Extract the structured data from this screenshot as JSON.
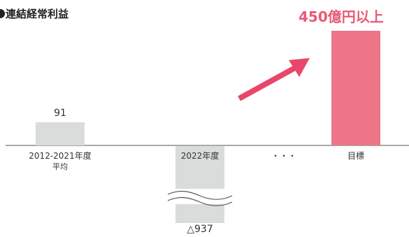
{
  "header": {
    "title": "連結経常利益"
  },
  "chart_data": {
    "type": "bar",
    "title": "連結経常利益",
    "categories": [
      {
        "label": "2012-2021年度",
        "sublabel": "平均"
      },
      {
        "label": "2022年度",
        "sublabel": ""
      },
      {
        "label": "・・・",
        "sublabel": ""
      },
      {
        "label": "目標",
        "sublabel": ""
      }
    ],
    "values": [
      91,
      -937,
      null,
      450
    ],
    "value_labels": [
      "91",
      "△937",
      "",
      "450億円以上"
    ],
    "axis_break": true,
    "colors": {
      "actual": "#d9dcda",
      "target": "#ee7487",
      "arrow": "#e8476a",
      "axis": "#555555"
    }
  }
}
